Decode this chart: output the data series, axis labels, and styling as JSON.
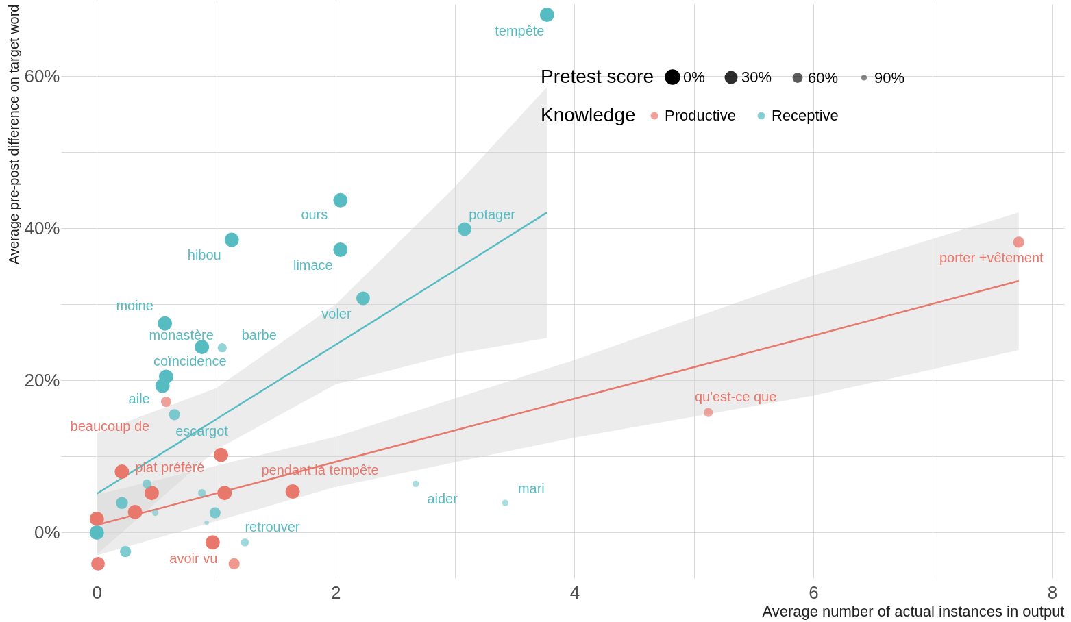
{
  "chart_data": {
    "type": "bubble",
    "xlabel": "Average number of actual instances in output",
    "ylabel": "Average pre-post difference on target word",
    "legend_title": [
      "Pretest score",
      "Knowledge"
    ],
    "size_legend": [
      {
        "value": 1,
        "label": "0%"
      },
      {
        "value": 0.7,
        "label": "30%"
      },
      {
        "value": 0.4,
        "label": "60%"
      },
      {
        "value": 0.1,
        "label": "90%"
      }
    ],
    "legend": "top right",
    "grid": true,
    "xlim": [
      -0.3,
      8.1
    ],
    "ylim": [
      -6,
      69.5
    ],
    "xticks": [
      0,
      {
        "value": 1,
        "label": null
      },
      2,
      {
        "value": 3,
        "label": null
      },
      4,
      {
        "value": 5,
        "label": null
      },
      6,
      {
        "value": 7,
        "label": null
      },
      8
    ],
    "yticks": [
      {
        "value": 0,
        "label": "0%"
      },
      {
        "value": 10,
        "label": null
      },
      {
        "value": 20,
        "label": "20%"
      },
      {
        "value": 30,
        "label": null
      },
      {
        "value": 40,
        "label": "40%"
      },
      {
        "value": 50,
        "label": null
      },
      {
        "value": 60,
        "label": "60%"
      }
    ],
    "series": [
      {
        "name": "Productive",
        "color": "#e8776c",
        "x": [
          7.72,
          5.12,
          0.58,
          1.04,
          0.21,
          0.46,
          1.07,
          1.64,
          0.32,
          0,
          0.97,
          1.15,
          0.01
        ],
        "values": [
          38.2,
          15.8,
          17.2,
          10.2,
          8.0,
          5.2,
          5.2,
          5.4,
          2.7,
          1.8,
          -1.3,
          -4.1,
          -4.1
        ],
        "sizes": [
          0.6,
          0.4,
          0.5,
          1,
          1,
          1,
          1,
          1,
          1,
          1,
          1,
          0.6,
          0.9
        ],
        "value_labels": [
          "porter +vêtement",
          "qu'est-ce que",
          "beaucoup de",
          null,
          "plat préféré",
          null,
          null,
          "pendant la tempête",
          null,
          null,
          "avoir vu",
          null,
          null
        ]
      },
      {
        "name": "Receptive",
        "color": "#56bcc2",
        "x": [
          3.77,
          2.04,
          3.08,
          1.13,
          2.04,
          2.23,
          0.57,
          0.88,
          1.05,
          0.58,
          0.55,
          0.65,
          0.42,
          0.21,
          0.49,
          0.88,
          0.99,
          0.92,
          0,
          0.24,
          1.24,
          2.67,
          3.42
        ],
        "values": [
          68.1,
          43.7,
          39.9,
          38.5,
          37.2,
          30.8,
          27.5,
          24.4,
          24.3,
          20.5,
          19.3,
          15.5,
          6.4,
          3.9,
          2.6,
          5.2,
          2.6,
          1.3,
          0,
          -2.5,
          -1.3,
          6.4,
          3.9
        ],
        "sizes": [
          1,
          1,
          0.9,
          1,
          1,
          0.9,
          1,
          1,
          0.4,
          1,
          1,
          0.6,
          0.4,
          0.7,
          0.2,
          0.3,
          0.6,
          0.1,
          1,
          0.6,
          0.3,
          0.2,
          0.2
        ],
        "value_labels": [
          "tempête",
          "ours",
          "potager",
          "hibou",
          "limace",
          "voler",
          "moine",
          "monastère",
          "barbe",
          "coïncidence",
          "aile",
          "escargot",
          null,
          null,
          null,
          null,
          null,
          null,
          null,
          null,
          "retrouver",
          "aider",
          "mari"
        ]
      },
      {
        "type": "line",
        "color": "#e8776c",
        "x": [
          0,
          2,
          4,
          6,
          7.72
        ],
        "values": [
          1.0,
          9.3,
          17.6,
          25.9,
          33.1
        ],
        "lower": [
          -3,
          6,
          12.5,
          18,
          24
        ],
        "upper": [
          5,
          12.6,
          22.7,
          33.8,
          42.1
        ]
      },
      {
        "type": "line",
        "color": "#56bcc2",
        "x": [
          0,
          1,
          2,
          3,
          3.77
        ],
        "values": [
          5.1,
          14.9,
          24.7,
          34.5,
          42.1
        ],
        "lower": [
          -2.9,
          10.9,
          19.5,
          23.5,
          25.6
        ],
        "upper": [
          13.1,
          19,
          30,
          45.5,
          58.6
        ]
      }
    ]
  }
}
